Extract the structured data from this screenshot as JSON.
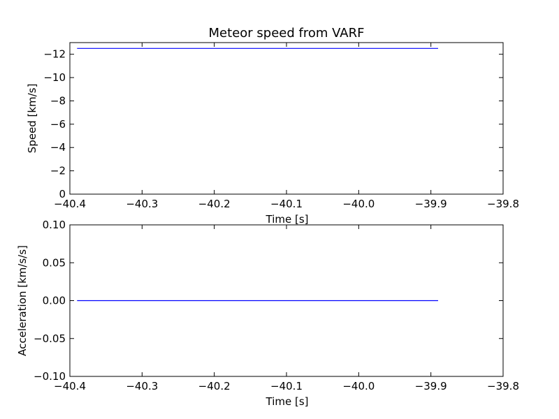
{
  "chart_data": [
    {
      "type": "line",
      "title": "Meteor speed from  VARF",
      "xlabel": "Time [s]",
      "ylabel": "Speed [km/s]",
      "xlim": [
        -40.4,
        -39.8
      ],
      "ylim": [
        0,
        -13
      ],
      "y_inverted": true,
      "grid": false,
      "x_ticks": [
        -40.4,
        -40.3,
        -40.2,
        -40.1,
        -40.0,
        -39.9,
        -39.8
      ],
      "x_tick_labels": [
        "−40.4",
        "−40.3",
        "−40.2",
        "−40.1",
        "−40.0",
        "−39.9",
        "−39.8"
      ],
      "y_ticks": [
        0,
        -2,
        -4,
        -6,
        -8,
        -10,
        -12
      ],
      "y_tick_labels": [
        "0",
        "−2",
        "−4",
        "−6",
        "−8",
        "−10",
        "−12"
      ],
      "color": "#0000ff",
      "series": [
        {
          "x": [
            -40.39,
            -39.89
          ],
          "y": [
            -12.5,
            -12.5
          ]
        }
      ]
    },
    {
      "type": "line",
      "title": "",
      "xlabel": "Time [s]",
      "ylabel": "Acceleration [km/s/s]",
      "xlim": [
        -40.4,
        -39.8
      ],
      "ylim": [
        -0.1,
        0.1
      ],
      "grid": false,
      "x_ticks": [
        -40.4,
        -40.3,
        -40.2,
        -40.1,
        -40.0,
        -39.9,
        -39.8
      ],
      "x_tick_labels": [
        "−40.4",
        "−40.3",
        "−40.2",
        "−40.1",
        "−40.0",
        "−39.9",
        "−39.8"
      ],
      "y_ticks": [
        0.1,
        0.05,
        0.0,
        -0.05,
        -0.1
      ],
      "y_tick_labels": [
        "0.10",
        "0.05",
        "0.00",
        "−0.05",
        "−0.10"
      ],
      "color": "#0000ff",
      "series": [
        {
          "x": [
            -40.39,
            -39.89
          ],
          "y": [
            0.0,
            0.0
          ]
        }
      ]
    }
  ]
}
